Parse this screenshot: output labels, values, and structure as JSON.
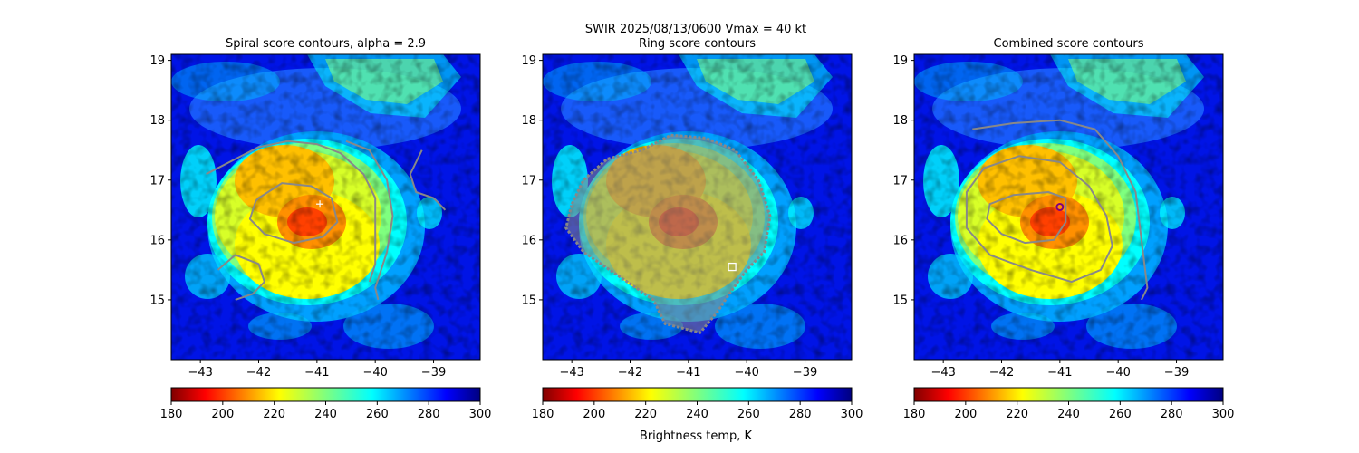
{
  "figure": {
    "suptitle_line1": "SWIR  2025/08/13/0600    Vmax = 40 kt",
    "colorbar_label": "Brightness temp, K"
  },
  "chart_data": [
    {
      "type": "heatmap",
      "title": "Spiral score contours, alpha =  2.9",
      "xlim": [
        -43.5,
        -38.2
      ],
      "ylim": [
        14.0,
        19.1
      ],
      "xticks": [
        -43,
        -42,
        -41,
        -40,
        -39
      ],
      "yticks": [
        15,
        16,
        17,
        18,
        19
      ],
      "colorbar": {
        "cmap": "jet_r",
        "range": [
          180,
          300
        ],
        "ticks": [
          180,
          200,
          220,
          240,
          260,
          280,
          300
        ]
      },
      "marker": {
        "shape": "plus",
        "color": "#ffffff",
        "lon": -40.95,
        "lat": 16.6
      },
      "contours": [
        {
          "name": "spiral-outer-contour",
          "points": [
            [
              -42.9,
              17.1
            ],
            [
              -42.5,
              17.3
            ],
            [
              -42.0,
              17.55
            ],
            [
              -41.5,
              17.65
            ],
            [
              -41.0,
              17.6
            ],
            [
              -40.6,
              17.45
            ],
            [
              -40.2,
              17.1
            ],
            [
              -40.0,
              16.7
            ],
            [
              -40.0,
              16.2
            ],
            [
              -40.0,
              15.6
            ],
            [
              -40.1,
              15.3
            ]
          ]
        },
        {
          "name": "spiral-inner-contour",
          "points": [
            [
              -42.0,
              16.7
            ],
            [
              -41.6,
              16.95
            ],
            [
              -41.1,
              16.9
            ],
            [
              -40.75,
              16.7
            ],
            [
              -40.65,
              16.3
            ],
            [
              -40.9,
              16.05
            ],
            [
              -41.4,
              15.95
            ],
            [
              -41.9,
              16.1
            ],
            [
              -42.15,
              16.35
            ],
            [
              -42.05,
              16.65
            ]
          ]
        },
        {
          "name": "spiral-arc-east",
          "points": [
            [
              -40.5,
              17.65
            ],
            [
              -40.1,
              17.5
            ],
            [
              -39.8,
              17.0
            ],
            [
              -39.7,
              16.4
            ],
            [
              -39.8,
              15.8
            ],
            [
              -40.0,
              15.2
            ],
            [
              -39.95,
              15.0
            ]
          ]
        },
        {
          "name": "spiral-arc-southwest",
          "points": [
            [
              -42.7,
              15.5
            ],
            [
              -42.4,
              15.75
            ],
            [
              -42.0,
              15.6
            ],
            [
              -41.9,
              15.3
            ],
            [
              -42.1,
              15.1
            ],
            [
              -42.4,
              15.0
            ]
          ]
        },
        {
          "name": "spiral-arc-far-east",
          "points": [
            [
              -39.2,
              17.5
            ],
            [
              -39.4,
              17.1
            ],
            [
              -39.3,
              16.8
            ],
            [
              -39.0,
              16.7
            ],
            [
              -38.8,
              16.5
            ]
          ]
        }
      ]
    },
    {
      "type": "heatmap",
      "title": "Ring score contours",
      "xlim": [
        -43.5,
        -38.2
      ],
      "ylim": [
        14.0,
        19.1
      ],
      "xticks": [
        -43,
        -42,
        -41,
        -40,
        -39
      ],
      "yticks": [
        15,
        16,
        17,
        18,
        19
      ],
      "colorbar": {
        "cmap": "jet_r",
        "range": [
          180,
          300
        ],
        "ticks": [
          180,
          200,
          220,
          240,
          260,
          280,
          300
        ]
      },
      "marker": {
        "shape": "square",
        "color": "#ffffff",
        "lon": -40.25,
        "lat": 15.55
      },
      "contours": [
        {
          "name": "ring-score-region",
          "points": [
            [
              -43.0,
              16.6
            ],
            [
              -42.8,
              17.0
            ],
            [
              -42.4,
              17.35
            ],
            [
              -41.8,
              17.5
            ],
            [
              -41.3,
              17.75
            ],
            [
              -40.7,
              17.7
            ],
            [
              -40.2,
              17.5
            ],
            [
              -39.8,
              17.0
            ],
            [
              -39.6,
              16.4
            ],
            [
              -39.7,
              15.8
            ],
            [
              -40.0,
              15.5
            ],
            [
              -40.3,
              15.1
            ],
            [
              -40.5,
              14.8
            ],
            [
              -40.8,
              14.45
            ],
            [
              -41.4,
              14.6
            ],
            [
              -41.6,
              15.0
            ],
            [
              -42.2,
              15.4
            ],
            [
              -42.8,
              15.8
            ],
            [
              -43.1,
              16.2
            ]
          ]
        }
      ]
    },
    {
      "type": "heatmap",
      "title": "Combined score contours",
      "xlim": [
        -43.5,
        -38.2
      ],
      "ylim": [
        14.0,
        19.1
      ],
      "xticks": [
        -43,
        -42,
        -41,
        -40,
        -39
      ],
      "yticks": [
        15,
        16,
        17,
        18,
        19
      ],
      "colorbar": {
        "cmap": "jet_r",
        "range": [
          180,
          300
        ],
        "ticks": [
          180,
          200,
          220,
          240,
          260,
          280,
          300
        ]
      },
      "marker": {
        "shape": "circle",
        "color": "#800080",
        "lon": -41.0,
        "lat": 16.55
      },
      "contours": [
        {
          "name": "combined-outer-contour",
          "points": [
            [
              -42.5,
              17.85
            ],
            [
              -41.8,
              17.95
            ],
            [
              -41.0,
              18.0
            ],
            [
              -40.4,
              17.85
            ],
            [
              -40.0,
              17.4
            ],
            [
              -39.7,
              16.8
            ],
            [
              -39.6,
              16.0
            ],
            [
              -39.5,
              15.2
            ],
            [
              -39.6,
              15.0
            ]
          ]
        },
        {
          "name": "combined-mid-contour",
          "points": [
            [
              -42.3,
              17.2
            ],
            [
              -41.7,
              17.4
            ],
            [
              -41.0,
              17.3
            ],
            [
              -40.5,
              16.9
            ],
            [
              -40.2,
              16.4
            ],
            [
              -40.1,
              15.9
            ],
            [
              -40.3,
              15.5
            ],
            [
              -40.8,
              15.3
            ],
            [
              -41.5,
              15.5
            ],
            [
              -42.2,
              15.75
            ],
            [
              -42.6,
              16.2
            ],
            [
              -42.6,
              16.8
            ]
          ]
        },
        {
          "name": "combined-inner-contour",
          "points": [
            [
              -42.2,
              16.6
            ],
            [
              -41.8,
              16.75
            ],
            [
              -41.2,
              16.8
            ],
            [
              -40.9,
              16.7
            ],
            [
              -40.9,
              16.3
            ],
            [
              -41.1,
              16.0
            ],
            [
              -41.6,
              15.95
            ],
            [
              -42.0,
              16.1
            ],
            [
              -42.25,
              16.35
            ]
          ]
        }
      ]
    }
  ]
}
